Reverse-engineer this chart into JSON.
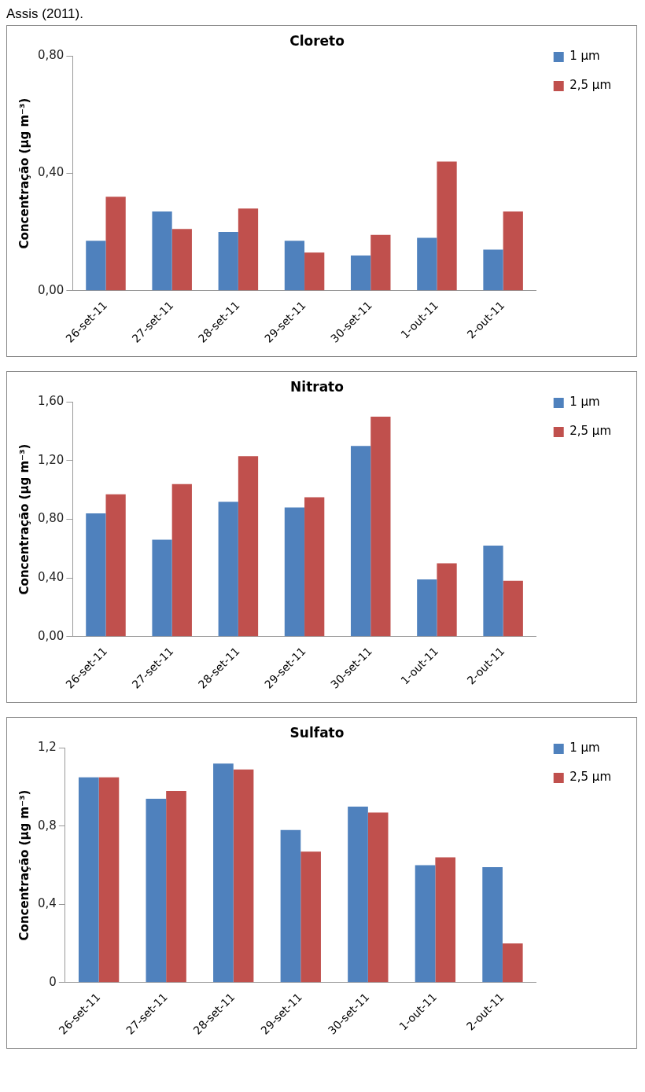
{
  "chart_data": [
    {
      "type": "bar",
      "title": "Cloreto",
      "ylabel": "Concentração (µg m⁻³)",
      "annotations": [
        "Assis (2011)."
      ],
      "categories": [
        "26-set-11",
        "27-set-11",
        "28-set-11",
        "29-set-11",
        "30-set-11",
        "1-out-11",
        "2-out-11"
      ],
      "series": [
        {
          "name": "1 µm",
          "color": "#4f81bd",
          "values": [
            0.17,
            0.27,
            0.2,
            0.17,
            0.12,
            0.18,
            0.14
          ]
        },
        {
          "name": "2,5 µm",
          "color": "#c0504d",
          "values": [
            0.32,
            0.21,
            0.28,
            0.13,
            0.19,
            0.44,
            0.27
          ]
        }
      ],
      "ylim": [
        0,
        0.8
      ],
      "yticks": [
        {
          "value": 0,
          "label": "0,00"
        },
        {
          "value": 0.4,
          "label": "0,40"
        },
        {
          "value": 0.8,
          "label": "0,80"
        }
      ],
      "legend": "top right"
    },
    {
      "type": "bar",
      "title": "Nitrato",
      "ylabel": "Concentração (µg m⁻³)",
      "categories": [
        "26-set-11",
        "27-set-11",
        "28-set-11",
        "29-set-11",
        "30-set-11",
        "1-out-11",
        "2-out-11"
      ],
      "series": [
        {
          "name": "1 µm",
          "color": "#4f81bd",
          "values": [
            0.84,
            0.66,
            0.92,
            0.88,
            1.3,
            0.39,
            0.62
          ]
        },
        {
          "name": "2,5 µm",
          "color": "#c0504d",
          "values": [
            0.97,
            1.04,
            1.23,
            0.95,
            1.5,
            0.5,
            0.38
          ]
        }
      ],
      "ylim": [
        0,
        1.6
      ],
      "yticks": [
        {
          "value": 0,
          "label": "0,00"
        },
        {
          "value": 0.4,
          "label": "0,40"
        },
        {
          "value": 0.8,
          "label": "0,80"
        },
        {
          "value": 1.2,
          "label": "1,20"
        },
        {
          "value": 1.6,
          "label": "1,60"
        }
      ],
      "legend": "top right"
    },
    {
      "type": "bar",
      "title": "Sulfato",
      "ylabel": "Concentração (µg m⁻³)",
      "categories": [
        "26-set-11",
        "27-set-11",
        "28-set-11",
        "29-set-11",
        "30-set-11",
        "1-out-11",
        "2-out-11"
      ],
      "series": [
        {
          "name": "1 µm",
          "color": "#4f81bd",
          "values": [
            1.05,
            0.94,
            1.12,
            0.78,
            0.9,
            0.6,
            0.59
          ]
        },
        {
          "name": "2,5 µm",
          "color": "#c0504d",
          "values": [
            1.05,
            0.98,
            1.09,
            0.67,
            0.87,
            0.64,
            0.2
          ]
        }
      ],
      "ylim": [
        0,
        1.2
      ],
      "yticks": [
        0,
        {
          "value": 0.4,
          "label": "0,4"
        },
        {
          "value": 0.8,
          "label": "0,8"
        },
        {
          "value": 1.2,
          "label": "1,2"
        }
      ],
      "legend": "top right"
    }
  ]
}
